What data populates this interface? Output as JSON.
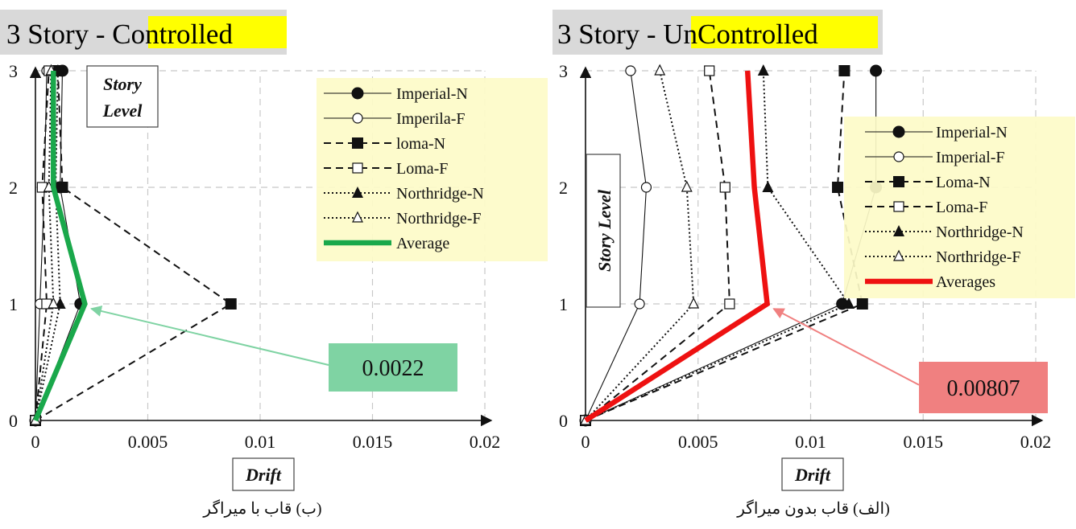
{
  "chart_data": [
    {
      "type": "line",
      "title_prefix": "3 Story - ",
      "title_highlight": "Controlled",
      "xlabel": "Drift",
      "ylabel": "Story Level",
      "caption": "(ب) قاب با میراگر",
      "xlim": [
        0,
        0.02
      ],
      "ylim": [
        0,
        3
      ],
      "xticks": [
        "0",
        "0.005",
        "0.01",
        "0.015",
        "0.02"
      ],
      "yticks": [
        "0",
        "1",
        "2",
        "3"
      ],
      "grid": true,
      "legend_position": "top-right",
      "series": [
        {
          "name": "Imperial-N",
          "style": "thin-solid",
          "marker": "circle-filled",
          "x": [
            0,
            0.002,
            0.0011,
            0.0012
          ],
          "y": [
            0,
            1,
            2,
            3
          ]
        },
        {
          "name": "Imperila-F",
          "style": "thin-solid",
          "marker": "circle-open",
          "x": [
            0,
            0.0002,
            0.0004,
            0.0005
          ],
          "y": [
            0,
            1,
            2,
            3
          ]
        },
        {
          "name": "loma-N",
          "style": "dashed",
          "marker": "square-filled",
          "x": [
            0,
            0.0087,
            0.0012,
            0.001
          ],
          "y": [
            0,
            1,
            2,
            3
          ]
        },
        {
          "name": "Loma-F",
          "style": "dashed",
          "marker": "square-open",
          "x": [
            0,
            0.0005,
            0.0003,
            0.0006
          ],
          "y": [
            0,
            1,
            2,
            3
          ]
        },
        {
          "name": "Northridge-N",
          "style": "dotted",
          "marker": "triangle-filled",
          "x": [
            0,
            0.0011,
            0.0009,
            0.001
          ],
          "y": [
            0,
            1,
            2,
            3
          ]
        },
        {
          "name": "Northridge-F",
          "style": "dotted",
          "marker": "triangle-open",
          "x": [
            0,
            0.0008,
            0.0006,
            0.0007
          ],
          "y": [
            0,
            1,
            2,
            3
          ]
        },
        {
          "name": "Average",
          "style": "thick",
          "marker": "none",
          "color": "#1aa84b",
          "x": [
            0,
            0.0022,
            0.0008,
            0.0008
          ],
          "y": [
            0,
            1,
            2,
            3
          ]
        }
      ],
      "annotation": {
        "text": "0.0022",
        "target_x": 0.0022,
        "target_y": 1,
        "box_color": "#7fd3a3",
        "arrow_color": "#7fd3a3"
      }
    },
    {
      "type": "line",
      "title_prefix": "3 Story - ",
      "title_highlight": "UnControlled",
      "xlabel": "Drift",
      "ylabel": "Story Level",
      "caption": "(الف) قاب بدون میراگر",
      "xlim": [
        0,
        0.02
      ],
      "ylim": [
        0,
        3
      ],
      "xticks": [
        "0",
        "0.005",
        "0.01",
        "0.015",
        "0.02"
      ],
      "yticks": [
        "0",
        "1",
        "2",
        "3"
      ],
      "grid": true,
      "legend_position": "right",
      "series": [
        {
          "name": "Imperial-N",
          "style": "thin-solid",
          "marker": "circle-filled",
          "x": [
            0,
            0.0114,
            0.0129,
            0.0129
          ],
          "y": [
            0,
            1,
            2,
            3
          ]
        },
        {
          "name": "Imperial-F",
          "style": "thin-solid",
          "marker": "circle-open",
          "x": [
            0,
            0.0024,
            0.0027,
            0.002
          ],
          "y": [
            0,
            1,
            2,
            3
          ]
        },
        {
          "name": "Loma-N",
          "style": "dashed",
          "marker": "square-filled",
          "x": [
            0,
            0.0123,
            0.0112,
            0.0115
          ],
          "y": [
            0,
            1,
            2,
            3
          ]
        },
        {
          "name": "Loma-F",
          "style": "dashed",
          "marker": "square-open",
          "x": [
            0,
            0.0064,
            0.0062,
            0.0055
          ],
          "y": [
            0,
            1,
            2,
            3
          ]
        },
        {
          "name": "Northridge-N",
          "style": "dotted",
          "marker": "triangle-filled",
          "x": [
            0,
            0.0117,
            0.0081,
            0.0079
          ],
          "y": [
            0,
            1,
            2,
            3
          ]
        },
        {
          "name": "Northridge-F",
          "style": "dotted",
          "marker": "triangle-open",
          "x": [
            0,
            0.0048,
            0.0045,
            0.0033
          ],
          "y": [
            0,
            1,
            2,
            3
          ]
        },
        {
          "name": "Averages",
          "style": "thick",
          "marker": "none",
          "color": "#ee1111",
          "x": [
            0,
            0.00807,
            0.0075,
            0.0072
          ],
          "y": [
            0,
            1,
            2,
            3
          ]
        }
      ],
      "annotation": {
        "text": "0.00807",
        "target_x": 0.00807,
        "target_y": 1,
        "box_color": "#f08080",
        "arrow_color": "#f08080"
      }
    }
  ],
  "colors": {
    "title_bg": "#d9d9d9",
    "title_highlight": "#ffff00",
    "legend_bg": "#fdfbc8",
    "grid": "#c8c8c8"
  }
}
